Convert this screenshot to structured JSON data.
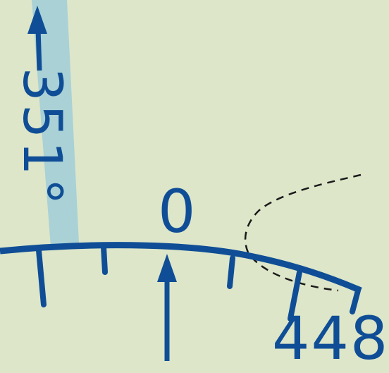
{
  "map": {
    "colors": {
      "background": "#dde6c9",
      "ink": "#0f4e96",
      "radial_band": "#a9d1d6",
      "boundary": "#1a1a1a"
    },
    "radial": {
      "label": "351°"
    },
    "compass_rose": {
      "north_label": "0"
    },
    "elevation": {
      "label": "448"
    }
  }
}
